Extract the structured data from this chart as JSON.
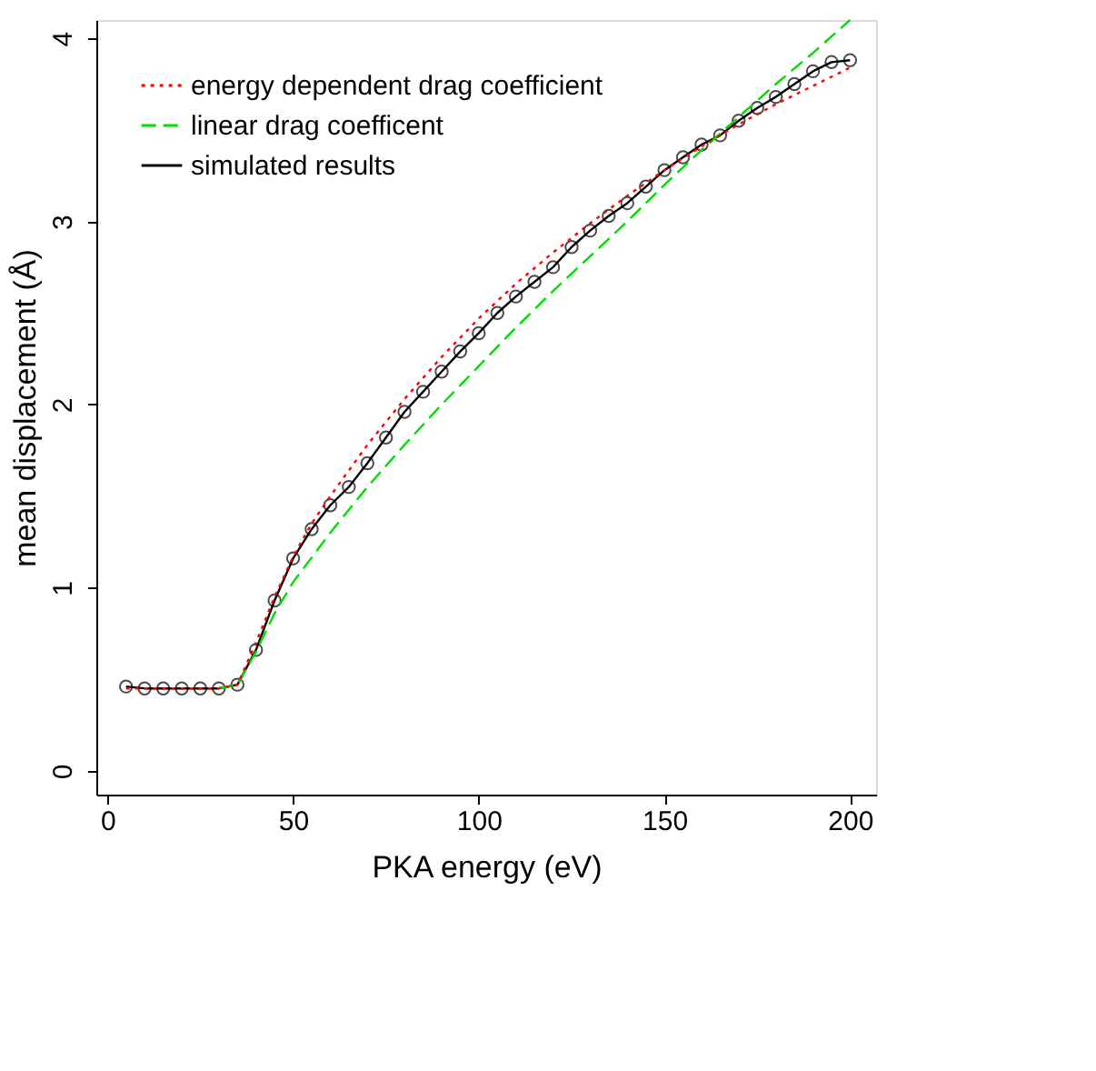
{
  "chart_data": {
    "type": "line",
    "xlabel": "PKA energy (eV)",
    "ylabel": "mean displacement (Å)",
    "xlim": [
      -3,
      207
    ],
    "ylim": [
      -0.13,
      4.1
    ],
    "xticks": [
      0,
      50,
      100,
      150,
      200
    ],
    "yticks": [
      0,
      1,
      2,
      3,
      4
    ],
    "grid": false,
    "legend": "top left",
    "series": [
      {
        "name": "energy dependent drag coefficient",
        "color": "#ff0000",
        "line_style": "dotted",
        "marker": "none",
        "x": [
          5,
          10,
          15,
          20,
          25,
          30,
          35,
          40,
          45,
          50,
          55,
          60,
          70,
          80,
          90,
          100,
          110,
          120,
          130,
          140,
          150,
          160,
          170,
          180,
          190,
          200
        ],
        "values": [
          0.45,
          0.45,
          0.45,
          0.45,
          0.45,
          0.45,
          0.47,
          0.7,
          0.95,
          1.17,
          1.35,
          1.5,
          1.78,
          2.03,
          2.26,
          2.47,
          2.66,
          2.83,
          2.99,
          3.14,
          3.28,
          3.41,
          3.53,
          3.64,
          3.74,
          3.84
        ]
      },
      {
        "name": "linear drag coefficent",
        "color": "#00dd00",
        "line_style": "dashed",
        "marker": "none",
        "x": [
          30,
          35,
          40,
          45,
          50,
          60,
          70,
          80,
          90,
          100,
          110,
          120,
          130,
          140,
          150,
          160,
          170,
          180,
          190,
          200
        ],
        "values": [
          0.45,
          0.47,
          0.65,
          0.86,
          1.03,
          1.3,
          1.55,
          1.78,
          2.0,
          2.21,
          2.42,
          2.62,
          2.81,
          3.0,
          3.2,
          3.39,
          3.57,
          3.75,
          3.92,
          4.1
        ]
      },
      {
        "name": "simulated results",
        "color": "#000000",
        "line_style": "solid",
        "marker": "circle",
        "x": [
          5,
          10,
          15,
          20,
          25,
          30,
          35,
          40,
          45,
          50,
          55,
          60,
          65,
          70,
          75,
          80,
          85,
          90,
          95,
          100,
          105,
          110,
          115,
          120,
          125,
          130,
          135,
          140,
          145,
          150,
          155,
          160,
          165,
          170,
          175,
          180,
          185,
          190,
          195,
          200
        ],
        "values": [
          0.46,
          0.45,
          0.45,
          0.45,
          0.45,
          0.45,
          0.47,
          0.66,
          0.93,
          1.16,
          1.32,
          1.45,
          1.55,
          1.68,
          1.82,
          1.96,
          2.07,
          2.18,
          2.29,
          2.39,
          2.5,
          2.59,
          2.67,
          2.75,
          2.86,
          2.95,
          3.03,
          3.1,
          3.19,
          3.28,
          3.35,
          3.42,
          3.47,
          3.55,
          3.62,
          3.68,
          3.75,
          3.82,
          3.87,
          3.88
        ]
      }
    ]
  }
}
